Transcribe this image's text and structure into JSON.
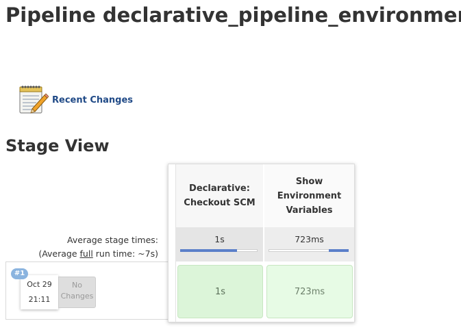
{
  "page": {
    "title": "Pipeline declarative_pipeline_environment"
  },
  "recent_changes": {
    "label": "Recent Changes",
    "icon": "notepad-pencil-icon"
  },
  "stage_view": {
    "title": "Stage View",
    "average_label": "Average stage times:",
    "full_run_prefix": "(Average ",
    "full_run_link": "full",
    "full_run_suffix": " run time: ~7s)",
    "stages": [
      {
        "name_line1": "Declarative:",
        "name_line2": "Checkout SCM",
        "name_line3": "",
        "avg_time": "1s",
        "avg_progress": 0.75,
        "run_time": "1s"
      },
      {
        "name_line1": "Show",
        "name_line2": "Environment",
        "name_line3": "Variables",
        "avg_time": "723ms",
        "avg_progress": 0.25,
        "run_time": "723ms"
      }
    ],
    "runs": [
      {
        "badge": "#1",
        "date": "Oct 29",
        "time": "21:11",
        "changes_line1": "No",
        "changes_line2": "Changes"
      }
    ]
  },
  "colors": {
    "link": "#204a87",
    "success_bg": "#dcf5d9",
    "progress": "#5b7fc9",
    "badge": "#8bb4df"
  }
}
